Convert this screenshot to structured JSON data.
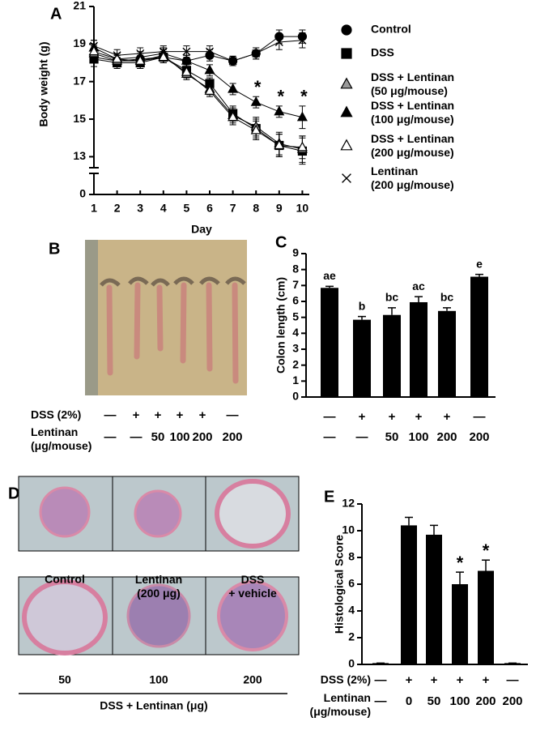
{
  "chart_data": [
    {
      "type": "line",
      "label": "A",
      "ylabel": "Body weight  (g)",
      "xlabel": "Day",
      "x": [
        1,
        2,
        3,
        4,
        5,
        6,
        7,
        8,
        9,
        10
      ],
      "xlim": [
        1,
        10.3
      ],
      "xticks": [
        1,
        2,
        3,
        4,
        5,
        6,
        7,
        8,
        9,
        10
      ],
      "ylim": [
        0,
        21
      ],
      "yticks": [
        0,
        13,
        15,
        17,
        19,
        21
      ],
      "y_break": [
        0,
        12.5
      ],
      "series": [
        {
          "name": "Control",
          "color": "#000000",
          "marker": "circle",
          "marker_fill": "#000000",
          "values": [
            18.3,
            18.1,
            18.2,
            18.3,
            18.1,
            18.4,
            18.1,
            18.5,
            19.4,
            19.4
          ],
          "errors": [
            0.3,
            0.3,
            0.3,
            0.3,
            0.3,
            0.3,
            0.25,
            0.3,
            0.35,
            0.35
          ]
        },
        {
          "name": "DSS",
          "color": "#000000",
          "marker": "square",
          "marker_fill": "#000000",
          "values": [
            18.2,
            18.0,
            18.0,
            18.3,
            17.6,
            16.9,
            15.3,
            14.5,
            13.6,
            13.3
          ],
          "errors": [
            0.4,
            0.3,
            0.3,
            0.3,
            0.3,
            0.3,
            0.4,
            0.5,
            0.6,
            0.7
          ]
        },
        {
          "name": "DSS + Lentinan\n(50 μg/mouse)",
          "color": "#000000",
          "marker": "triangle",
          "marker_fill": "#999999",
          "values": [
            18.5,
            18.1,
            18.1,
            18.4,
            17.4,
            16.6,
            15.2,
            14.6,
            13.7,
            13.4
          ],
          "errors": [
            0.4,
            0.3,
            0.4,
            0.3,
            0.3,
            0.3,
            0.4,
            0.5,
            0.6,
            0.7
          ]
        },
        {
          "name": "DSS + Lentinan\n(100 μg/mouse)",
          "color": "#000000",
          "marker": "triangle",
          "marker_fill": "#000000",
          "values": [
            18.8,
            18.2,
            18.3,
            18.5,
            18.1,
            17.6,
            16.6,
            15.9,
            15.4,
            15.1
          ],
          "errors": [
            0.4,
            0.3,
            0.3,
            0.3,
            0.3,
            0.3,
            0.3,
            0.3,
            0.3,
            0.6
          ]
        },
        {
          "name": "DSS + Lentinan\n(200 μg/mouse)",
          "color": "#000000",
          "marker": "triangle",
          "marker_fill": "#ffffff",
          "values": [
            18.6,
            18.2,
            18.1,
            18.3,
            17.5,
            16.5,
            15.1,
            14.4,
            13.6,
            13.5
          ],
          "errors": [
            0.4,
            0.3,
            0.3,
            0.3,
            0.3,
            0.3,
            0.4,
            0.5,
            0.6,
            0.6
          ]
        },
        {
          "name": "Lentinan\n(200 μg/mouse)",
          "color": "#000000",
          "marker": "cross",
          "marker_fill": "#000000",
          "values": [
            18.9,
            18.4,
            18.5,
            18.6,
            18.6,
            18.6,
            18.1,
            18.5,
            19.1,
            19.2
          ],
          "errors": [
            0.3,
            0.3,
            0.3,
            0.3,
            0.3,
            0.3,
            0.25,
            0.3,
            0.4,
            0.4
          ]
        }
      ],
      "annotations": [
        {
          "text": "*",
          "x": 8,
          "series": 3
        },
        {
          "text": "*",
          "x": 9,
          "series": 3
        },
        {
          "text": "*",
          "x": 10,
          "series": 3
        }
      ]
    },
    {
      "type": "bar",
      "label": "C",
      "ylabel": "Colon length (cm)",
      "color": "#000000",
      "values": [
        6.85,
        4.85,
        5.15,
        5.95,
        5.4,
        7.55
      ],
      "errors": [
        0.1,
        0.2,
        0.45,
        0.35,
        0.2,
        0.15
      ],
      "group_labels": [
        "ae",
        "b",
        "bc",
        "ac",
        "bc",
        "e"
      ],
      "ylim": [
        0,
        9
      ],
      "yticks": [
        0,
        1,
        2,
        3,
        4,
        5,
        6,
        7,
        8,
        9
      ],
      "rows": [
        [
          "—",
          "+",
          "+",
          "+",
          "+",
          "—"
        ],
        [
          "—",
          "—",
          "50",
          "100",
          "200",
          "200"
        ]
      ]
    },
    {
      "type": "bar",
      "label": "E",
      "ylabel": "Histological Score",
      "color": "#000000",
      "values": [
        0.1,
        10.4,
        9.7,
        6.0,
        7.0,
        0.1
      ],
      "errors": [
        0,
        0.6,
        0.7,
        0.9,
        0.8,
        0
      ],
      "significant": [
        false,
        false,
        false,
        true,
        true,
        false
      ],
      "significance_symbol": "*",
      "ylim": [
        0,
        12
      ],
      "yticks": [
        0,
        2,
        4,
        6,
        8,
        10,
        12
      ],
      "row_labels": [
        "DSS (2%)",
        "Lentinan\n(μg/mouse)"
      ],
      "rows": [
        [
          "—",
          "+",
          "+",
          "+",
          "+",
          "—"
        ],
        [
          "—",
          "0",
          "50",
          "100",
          "200",
          "200"
        ]
      ]
    }
  ],
  "photo_b": {
    "label": "B",
    "row_labels": [
      "DSS (2%)",
      "Lentinan\n(μg/mouse)"
    ],
    "rows": [
      [
        "—",
        "+",
        "+",
        "+",
        "+",
        "—"
      ],
      [
        "—",
        "—",
        "50",
        "100",
        "200",
        "200"
      ]
    ]
  },
  "photo_d": {
    "label": "D",
    "captions": [
      "Control",
      "Lentinan\n(200 μg)",
      "DSS\n+ vehicle",
      "50",
      "100",
      "200"
    ],
    "group_caption": "DSS + Lentinan (μg)"
  }
}
